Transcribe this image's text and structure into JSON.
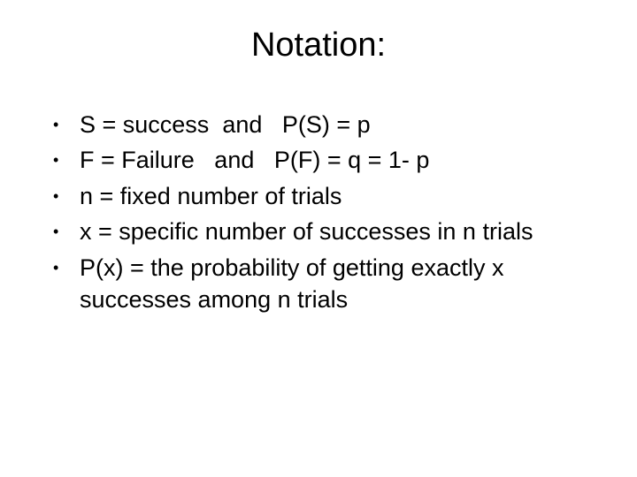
{
  "title": "Notation:",
  "bullets": [
    "S = success  and   P(S) = p",
    "F = Failure   and   P(F) = q = 1- p",
    "n = fixed number of trials",
    "x = specific number of successes in n trials",
    "P(x) = the probability of getting exactly x successes among n trials"
  ],
  "styling": {
    "background_color": "#ffffff",
    "text_color": "#000000",
    "title_fontsize": 38,
    "body_fontsize": 27,
    "font_family": "Arial",
    "bullet_marker": "•"
  }
}
